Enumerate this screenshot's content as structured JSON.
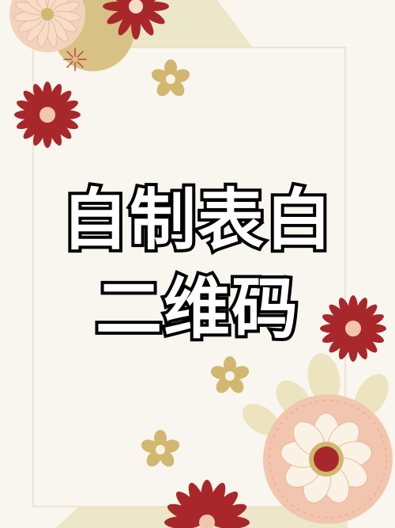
{
  "poster": {
    "title_line_1": "自制表白",
    "title_line_2": "二维码"
  },
  "colors": {
    "background": "#f8f6ef",
    "beige_panel": "#ece7c9",
    "gold": "#d1b76f",
    "crimson": "#a8272b",
    "peach": "#f2c6ae",
    "cream_petal": "#fbf2e6",
    "frame_line": "#e6e1c8"
  }
}
